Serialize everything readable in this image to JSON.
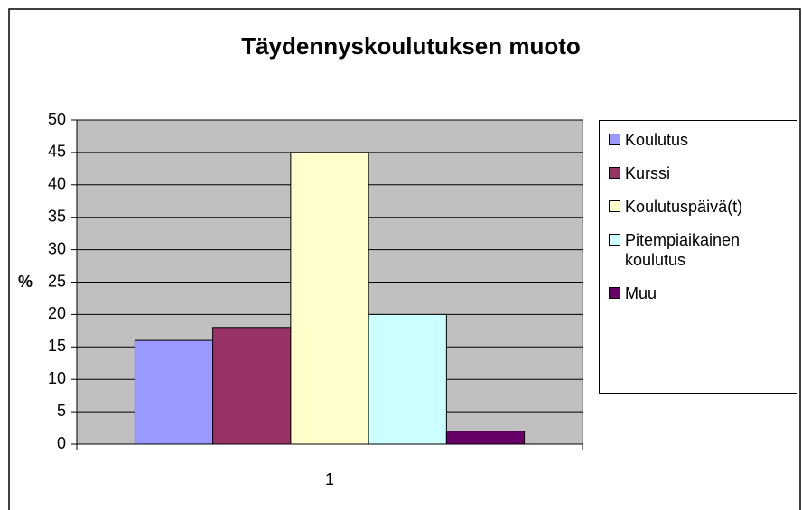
{
  "chart_data": {
    "type": "bar",
    "title": "Täydennyskoulutuksen muoto",
    "y_label": "%",
    "categories": [
      "1"
    ],
    "series": [
      {
        "name": "Koulutus",
        "color": "#9999ff",
        "values": [
          16
        ]
      },
      {
        "name": "Kurssi",
        "color": "#993366",
        "values": [
          18
        ]
      },
      {
        "name": "Koulutuspäivä(t)",
        "color": "#ffffcc",
        "values": [
          45
        ]
      },
      {
        "name": "Pitempiaikainen koulutus",
        "color": "#ccffff",
        "values": [
          20
        ]
      },
      {
        "name": "Muu",
        "color": "#660066",
        "values": [
          2
        ]
      }
    ],
    "ylim": [
      0,
      50
    ],
    "yticks": [
      0,
      5,
      10,
      15,
      20,
      25,
      30,
      35,
      40,
      45,
      50
    ],
    "grid": true,
    "legend": "right",
    "background": "#c0c0c0"
  }
}
